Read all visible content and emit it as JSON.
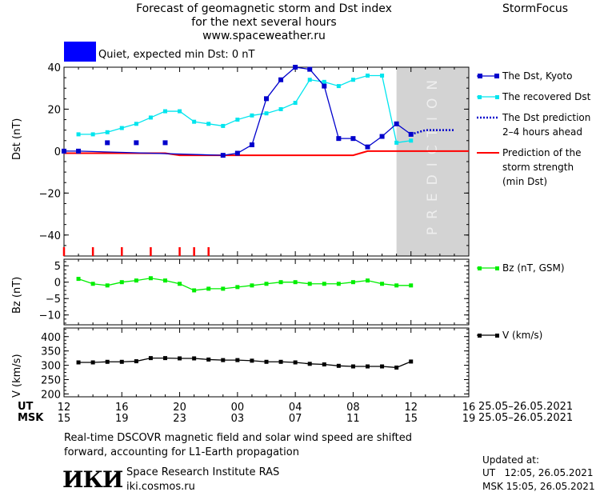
{
  "header": {
    "title_line1": "Forecast of geomagnetic storm and Dst index",
    "title_line2": "for the next several hours",
    "website": "www.spaceweather.ru",
    "brand": "StormFocus"
  },
  "quiet": {
    "label": "Quiet, expected min Dst: 0 nT",
    "color": "#0000ff"
  },
  "prediction_label": "PREDICTION",
  "legend": {
    "dst_kyoto": "The Dst, Kyoto",
    "recovered": "The recovered Dst",
    "prediction_line1": "The Dst prediction",
    "prediction_line2": "2–4 hours ahead",
    "strength_line1": "Prediction of the",
    "strength_line2": "storm strength",
    "strength_line3": "(min Dst)",
    "bz": "Bz (nT, GSM)",
    "v": "V (km/s)"
  },
  "time_axis": {
    "ut_label": "UT",
    "msk_label": "MSK",
    "ut_ticks": [
      "12",
      "16",
      "20",
      "00",
      "04",
      "08",
      "12",
      "16"
    ],
    "msk_ticks": [
      "15",
      "19",
      "23",
      "03",
      "07",
      "11",
      "15",
      "19"
    ],
    "ut_date": "25.05–26.05.2021",
    "msk_date": "25.05–26.05.2021"
  },
  "footer": {
    "note_line1": "Real-time DSCOVR magnetic field and solar wind speed are shifted",
    "note_line2": "forward, accounting for L1-Earth propagation",
    "institute": "Space Research Institute RAS",
    "site": "iki.cosmos.ru",
    "logo_text": "ИКИ",
    "updated_label": "Updated at:",
    "updated_ut": "UT   12:05, 26.05.2021",
    "updated_msk": "MSK 15:05, 26.05.2021"
  },
  "chart_data": [
    {
      "type": "line",
      "panel": "Dst",
      "ylabel": "Dst (nT)",
      "ylim": [
        -50,
        40
      ],
      "xlim": [
        0,
        28
      ],
      "yticks": [
        40,
        20,
        0,
        -20,
        -40
      ],
      "yticklabels": [
        "40",
        "20",
        "0",
        "−20",
        "−40"
      ],
      "prediction_shade_x": [
        23,
        27
      ],
      "series": [
        {
          "name": "The Dst, Kyoto",
          "color": "#0000cc",
          "x": [
            0,
            1,
            11,
            12,
            13,
            14,
            15,
            16,
            17,
            18,
            19,
            20,
            21,
            22,
            23,
            24
          ],
          "y": [
            0,
            0,
            -2,
            -1,
            3,
            25,
            34,
            40,
            39,
            31,
            6,
            6,
            2,
            7,
            13,
            8
          ]
        },
        {
          "name": "Quiet hours",
          "color": "#0000cc",
          "x": [
            3,
            5,
            7
          ],
          "y": [
            4,
            4,
            4
          ]
        },
        {
          "name": "The recovered Dst",
          "color": "#00e5ee",
          "x": [
            1,
            2,
            3,
            4,
            5,
            6,
            7,
            8,
            9,
            10,
            11,
            12,
            13,
            14,
            15,
            16,
            17,
            18,
            19,
            20,
            21,
            22,
            23,
            24
          ],
          "y": [
            8,
            8,
            9,
            11,
            13,
            16,
            19,
            19,
            14,
            13,
            12,
            15,
            17,
            18,
            20,
            23,
            34,
            33,
            31,
            34,
            36,
            36,
            4,
            5
          ]
        },
        {
          "name": "The Dst prediction 2–4 hours ahead",
          "color": "#0000cc",
          "x": [
            24,
            25,
            26,
            27
          ],
          "y": [
            8,
            10,
            10,
            10
          ]
        },
        {
          "name": "Prediction of the storm strength (min Dst)",
          "color": "#ff0000",
          "x": [
            0,
            7,
            8,
            20,
            21,
            28
          ],
          "y": [
            -1,
            -1,
            -2,
            -2,
            0,
            0
          ]
        }
      ],
      "event_markers_x": [
        0,
        2,
        4,
        6,
        8,
        9,
        10
      ]
    },
    {
      "type": "line",
      "panel": "Bz",
      "ylabel": "Bz (nT)",
      "ylim": [
        -13,
        7
      ],
      "xlim": [
        0,
        28
      ],
      "yticks": [
        5,
        0,
        -5,
        -10
      ],
      "yticklabels": [
        "5",
        "0",
        "−5",
        "−10"
      ],
      "series": [
        {
          "name": "Bz (nT, GSM)",
          "color": "#00ee00",
          "x": [
            1,
            2,
            3,
            4,
            5,
            6,
            7,
            8,
            9,
            10,
            11,
            12,
            13,
            14,
            15,
            16,
            17,
            18,
            19,
            20,
            21,
            22,
            23,
            24
          ],
          "y": [
            1,
            -0.5,
            -1,
            0,
            0.5,
            1.2,
            0.5,
            -0.5,
            -2.5,
            -2,
            -2,
            -1.5,
            -1,
            -0.5,
            0,
            0,
            -0.5,
            -0.5,
            -0.5,
            0,
            0.5,
            -0.5,
            -1,
            -1
          ]
        }
      ]
    },
    {
      "type": "line",
      "panel": "V",
      "ylabel": "V (km/s)",
      "ylim": [
        190,
        430
      ],
      "xlim": [
        0,
        28
      ],
      "yticks": [
        400,
        350,
        300,
        250,
        200
      ],
      "yticklabels": [
        "400",
        "350",
        "300",
        "250",
        "200"
      ],
      "series": [
        {
          "name": "V (km/s)",
          "color": "#000000",
          "x": [
            1,
            2,
            3,
            4,
            5,
            6,
            7,
            8,
            9,
            10,
            11,
            12,
            13,
            14,
            15,
            16,
            17,
            18,
            19,
            20,
            21,
            22,
            23,
            24
          ],
          "y": [
            310,
            310,
            312,
            312,
            314,
            325,
            325,
            324,
            324,
            320,
            318,
            318,
            316,
            312,
            312,
            310,
            305,
            303,
            298,
            296,
            296,
            296,
            292,
            313
          ]
        }
      ]
    }
  ]
}
